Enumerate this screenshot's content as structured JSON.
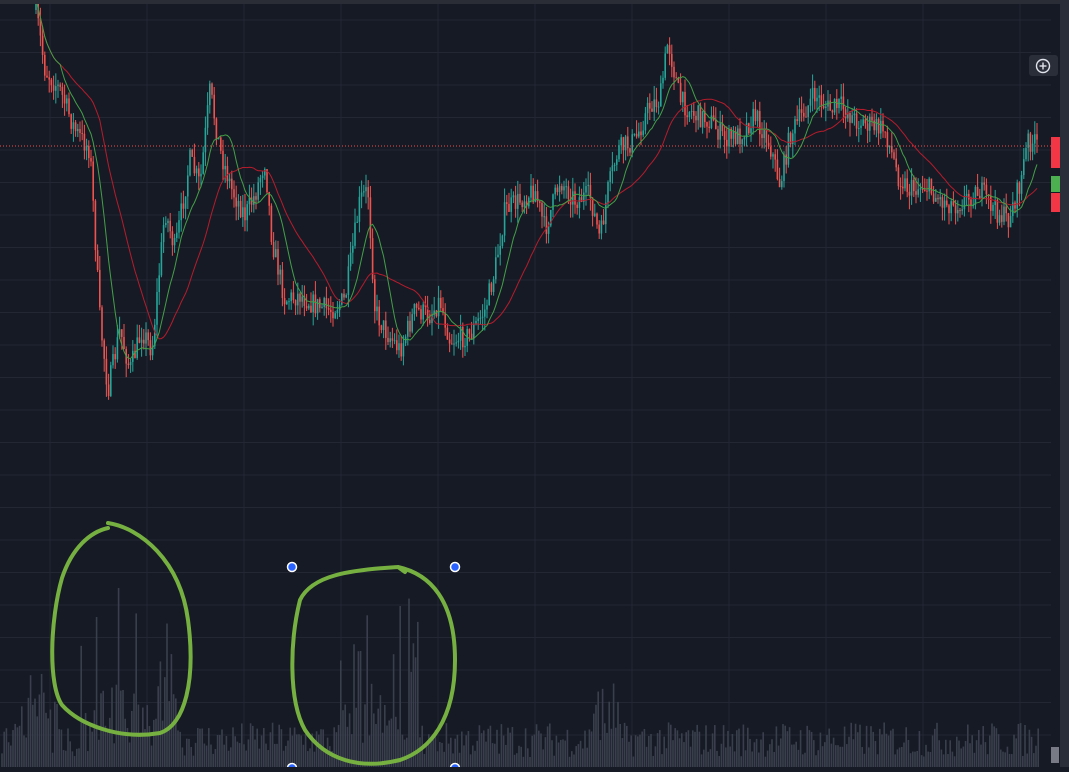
{
  "chart_data": {
    "type": "candlestick",
    "title": "",
    "xlabel": "",
    "ylabel": "",
    "grid": true,
    "moving_averages": 2,
    "price_line": "horizontal-dotted-red",
    "volume_pane": true,
    "annotations": [
      {
        "type": "hand-drawn-circle",
        "color": "#76b041",
        "target": "volume"
      },
      {
        "type": "hand-drawn-circle",
        "color": "#76b041",
        "target": "volume",
        "selected": true
      }
    ]
  },
  "colors": {
    "background": "#161a25",
    "grid": "#232734",
    "up": "#26a69a",
    "down": "#ef5350",
    "ma_fast": "#43a047",
    "ma_slow": "#b71c2c",
    "price_line": "#ef5350",
    "volume": "#3a3f4d",
    "annotation": "#76b041",
    "handle": "#2962ff"
  },
  "icons": {
    "zoom": "zoom-in-icon"
  }
}
